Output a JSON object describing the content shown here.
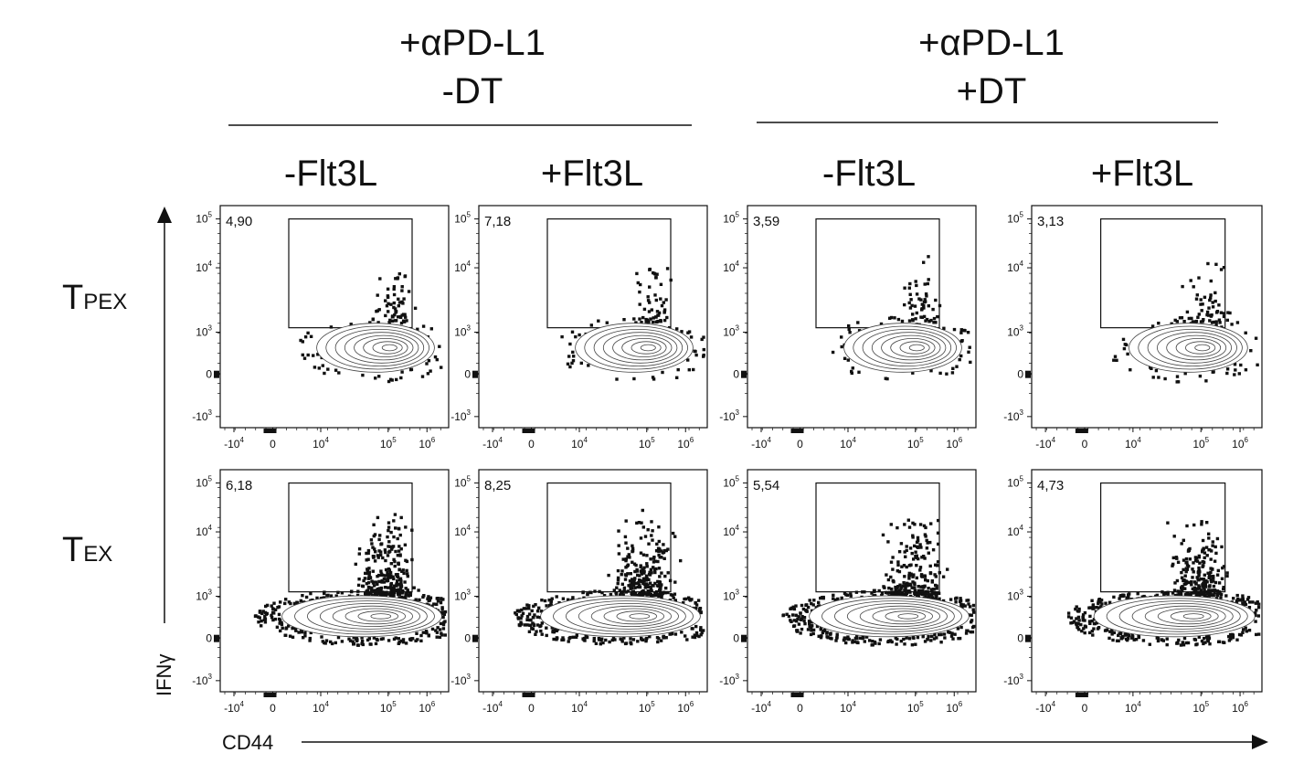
{
  "figure": {
    "group_headers": [
      {
        "line1": "+αPD-L1",
        "line2": "-DT"
      },
      {
        "line1": "+αPD-L1",
        "line2": "+DT"
      }
    ],
    "column_headers": [
      "-Flt3L",
      "+Flt3L",
      "-Flt3L",
      "+Flt3L"
    ],
    "row_labels": [
      {
        "main": "T",
        "sub": "PEX"
      },
      {
        "main": "T",
        "sub": "EX"
      }
    ],
    "x_axis_label": "CD44",
    "y_axis_label": "IFNγ"
  },
  "chart_data": {
    "type": "scatter",
    "subtype": "flow-cytometry-contour-with-outliers",
    "x_axis": {
      "label": "CD44",
      "scale": "biexponential",
      "tick_labels": [
        "-10^4",
        "0",
        "10^4",
        "10^5",
        "10^6"
      ]
    },
    "y_axis": {
      "label": "IFNγ",
      "scale": "biexponential",
      "tick_labels": [
        "-10^3",
        "0",
        "10^3",
        "10^4",
        "10^5"
      ]
    },
    "gate": {
      "name": "IFNγ+ gate",
      "x_range": [
        4000,
        300000
      ],
      "y_range": [
        1300,
        100000
      ]
    },
    "panels": [
      {
        "row": "TPEX",
        "column": "-Flt3L",
        "condition": "+αPD-L1 -DT",
        "gate_percent": "4,90",
        "population": "small"
      },
      {
        "row": "TPEX",
        "column": "+Flt3L",
        "condition": "+αPD-L1 -DT",
        "gate_percent": "7,18",
        "population": "small"
      },
      {
        "row": "TPEX",
        "column": "-Flt3L",
        "condition": "+αPD-L1 +DT",
        "gate_percent": "3,59",
        "population": "small"
      },
      {
        "row": "TPEX",
        "column": "+Flt3L",
        "condition": "+αPD-L1 +DT",
        "gate_percent": "3,13",
        "population": "small"
      },
      {
        "row": "TEX",
        "column": "-Flt3L",
        "condition": "+αPD-L1 -DT",
        "gate_percent": "6,18",
        "population": "large"
      },
      {
        "row": "TEX",
        "column": "+Flt3L",
        "condition": "+αPD-L1 -DT",
        "gate_percent": "8,25",
        "population": "large"
      },
      {
        "row": "TEX",
        "column": "-Flt3L",
        "condition": "+αPD-L1 +DT",
        "gate_percent": "5,54",
        "population": "large"
      },
      {
        "row": "TEX",
        "column": "+Flt3L",
        "condition": "+αPD-L1 +DT",
        "gate_percent": "4,73",
        "population": "large"
      }
    ]
  }
}
